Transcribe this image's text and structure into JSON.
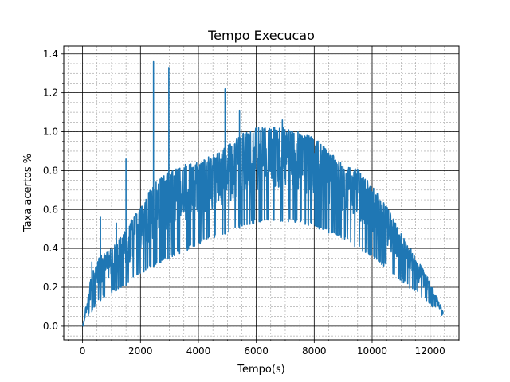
{
  "chart_data": {
    "type": "line",
    "title": "Tempo Execucao",
    "xlabel": "Tempo(s)",
    "ylabel": "Taxa acertos %",
    "xlim": [
      -650,
      13000
    ],
    "ylim": [
      -0.07,
      1.44
    ],
    "xticks": [
      0,
      2000,
      4000,
      6000,
      8000,
      10000,
      12000
    ],
    "yticks": [
      0.0,
      0.2,
      0.4,
      0.6,
      0.8,
      1.0,
      1.2,
      1.4
    ],
    "grid": {
      "major": true,
      "minor": true
    },
    "series": [
      {
        "color": "#1f77b4",
        "note_shape": "envelope",
        "x": [
          0,
          300,
          600,
          1000,
          1500,
          2000,
          2500,
          3000,
          3500,
          4000,
          4500,
          5000,
          5500,
          6000,
          6500,
          7000,
          7500,
          8000,
          8500,
          9000,
          9500,
          10000,
          10500,
          11000,
          11500,
          12000,
          12450
        ],
        "lower": [
          0.0,
          0.07,
          0.13,
          0.17,
          0.21,
          0.26,
          0.31,
          0.35,
          0.38,
          0.42,
          0.45,
          0.48,
          0.51,
          0.53,
          0.54,
          0.54,
          0.53,
          0.51,
          0.48,
          0.45,
          0.4,
          0.35,
          0.3,
          0.23,
          0.17,
          0.11,
          0.05
        ],
        "upper": [
          0.0,
          0.27,
          0.36,
          0.4,
          0.5,
          0.62,
          0.74,
          0.8,
          0.83,
          0.85,
          0.88,
          0.93,
          0.99,
          1.02,
          1.03,
          1.02,
          1.0,
          0.97,
          0.9,
          0.83,
          0.81,
          0.72,
          0.62,
          0.48,
          0.36,
          0.23,
          0.08
        ],
        "peaks": [
          {
            "x": 320,
            "y": 0.33
          },
          {
            "x": 620,
            "y": 0.56
          },
          {
            "x": 1170,
            "y": 0.53
          },
          {
            "x": 1500,
            "y": 0.86
          },
          {
            "x": 2450,
            "y": 1.36
          },
          {
            "x": 2980,
            "y": 1.33
          },
          {
            "x": 4920,
            "y": 1.22
          },
          {
            "x": 5420,
            "y": 1.11
          },
          {
            "x": 6900,
            "y": 1.06
          },
          {
            "x": 8500,
            "y": 0.89
          },
          {
            "x": 10400,
            "y": 0.58
          }
        ]
      }
    ]
  }
}
